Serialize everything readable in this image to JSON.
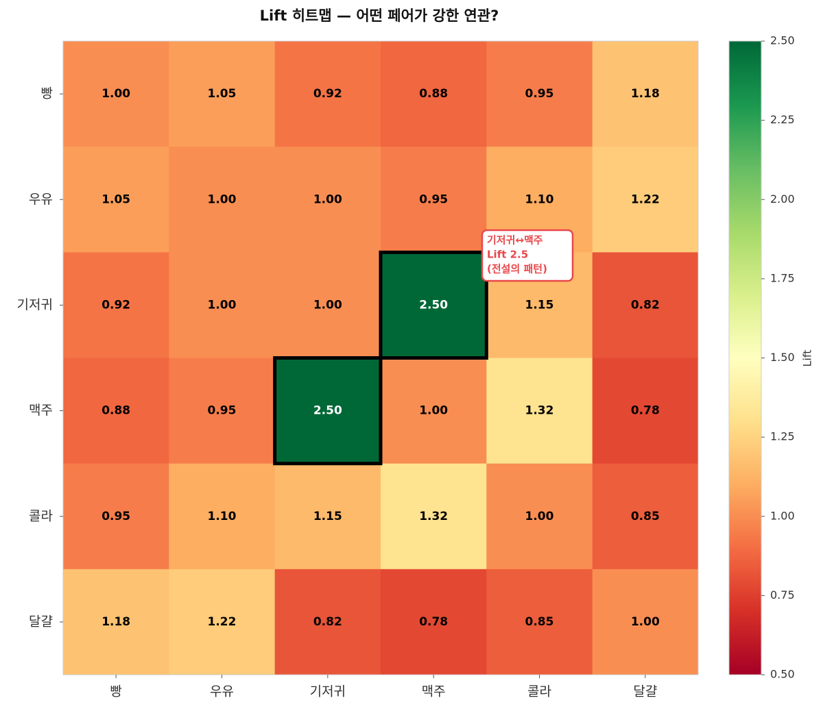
{
  "chart_data": {
    "type": "heatmap",
    "title": "Lift 히트맵 — 어떤 페어가 강한 연관?",
    "x_categories": [
      "빵",
      "우유",
      "기저귀",
      "맥주",
      "콜라",
      "달걀"
    ],
    "y_categories": [
      "빵",
      "우유",
      "기저귀",
      "맥주",
      "콜라",
      "달걀"
    ],
    "values": [
      [
        1.0,
        1.05,
        0.92,
        0.88,
        0.95,
        1.18
      ],
      [
        1.05,
        1.0,
        1.0,
        0.95,
        1.1,
        1.22
      ],
      [
        0.92,
        1.0,
        1.0,
        2.5,
        1.15,
        0.82
      ],
      [
        0.88,
        0.95,
        2.5,
        1.0,
        1.32,
        0.78
      ],
      [
        0.95,
        1.1,
        1.15,
        1.32,
        1.0,
        0.85
      ],
      [
        1.18,
        1.22,
        0.82,
        0.78,
        0.85,
        1.0
      ]
    ],
    "value_labels": [
      [
        "1.00",
        "1.05",
        "0.92",
        "0.88",
        "0.95",
        "1.18"
      ],
      [
        "1.05",
        "1.00",
        "1.00",
        "0.95",
        "1.10",
        "1.22"
      ],
      [
        "0.92",
        "1.00",
        "1.00",
        "2.50",
        "1.15",
        "0.82"
      ],
      [
        "0.88",
        "0.95",
        "2.50",
        "1.00",
        "1.32",
        "0.78"
      ],
      [
        "0.95",
        "1.10",
        "1.15",
        "1.32",
        "1.00",
        "0.85"
      ],
      [
        "1.18",
        "1.22",
        "0.82",
        "0.78",
        "0.85",
        "1.00"
      ]
    ],
    "colormap": "RdYlGn",
    "colorbar_label": "Lift",
    "clim": [
      0.5,
      2.5
    ],
    "cticks": [
      {
        "value": 0.5,
        "label": "0.50"
      },
      {
        "value": 0.75,
        "label": "0.75"
      },
      {
        "value": 1,
        "label": "1.00"
      },
      {
        "value": 1.25,
        "label": "1.25"
      },
      {
        "value": 1.5,
        "label": "1.50"
      },
      {
        "value": 1.75,
        "label": "1.75"
      },
      {
        "value": 2,
        "label": "2.00"
      },
      {
        "value": 2.25,
        "label": "2.25"
      },
      {
        "value": 2.5,
        "label": "2.50"
      }
    ],
    "highlight": [
      {
        "row": 2,
        "col": 3
      },
      {
        "row": 3,
        "col": 2
      }
    ],
    "annotation": {
      "text": [
        "기저귀↔맥주",
        "Lift 2.5",
        "(전설의 패턴)"
      ],
      "color": "#e8474a"
    }
  }
}
